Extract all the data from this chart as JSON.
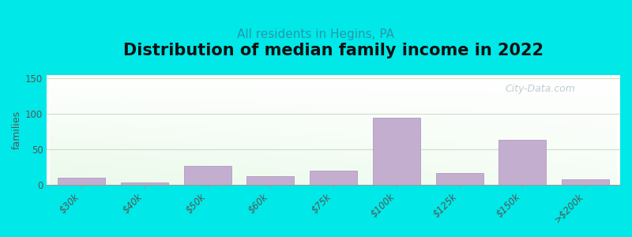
{
  "title": "Distribution of median family income in 2022",
  "subtitle": "All residents in Hegins, PA",
  "ylabel": "families",
  "categories": [
    "$30k",
    "$40k",
    "$50k",
    "$60k",
    "$75k",
    "$100k",
    "$125k",
    "$150k",
    ">$200k"
  ],
  "values": [
    10,
    3,
    27,
    12,
    20,
    95,
    17,
    63,
    8
  ],
  "bar_color": "#c4aed0",
  "bar_edge_color": "#b09ac0",
  "ylim": [
    0,
    155
  ],
  "yticks": [
    0,
    50,
    100,
    150
  ],
  "background_outer": "#00e8e8",
  "title_fontsize": 15,
  "subtitle_fontsize": 11,
  "subtitle_color": "#2299aa",
  "watermark_text": "City-Data.com",
  "watermark_color": "#b8c4cc",
  "tick_label_color": "#555555",
  "axis_line_color": "#999999",
  "grid_color": "#d0ddc8",
  "bar_width": 0.75
}
